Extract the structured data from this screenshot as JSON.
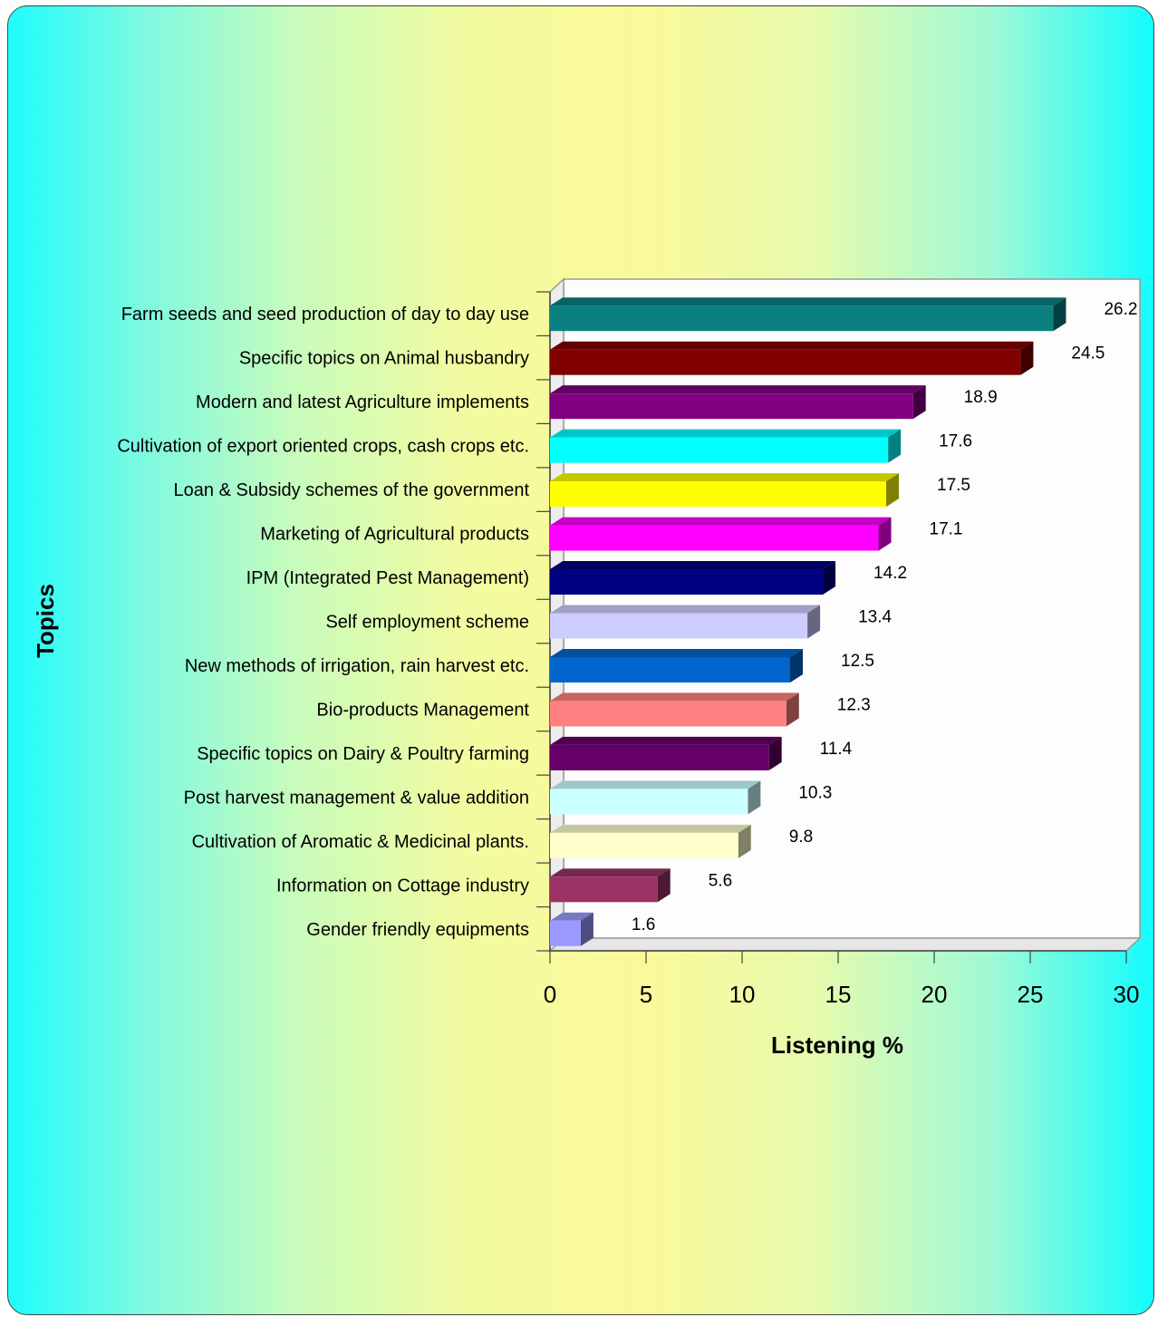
{
  "chart_data": {
    "type": "bar",
    "orientation": "horizontal",
    "xlabel": "Listening %",
    "ylabel": "Topics",
    "xlim": [
      0,
      30
    ],
    "xticks": [
      0,
      5,
      10,
      15,
      20,
      25,
      30
    ],
    "bars": [
      {
        "label": "Farm seeds and seed production of day to day use",
        "value": 26.2,
        "value_text": "26.2",
        "color": "#0a8080"
      },
      {
        "label": "Specific topics on Animal husbandry",
        "value": 24.5,
        "value_text": "24.5",
        "color": "#800000"
      },
      {
        "label": "Modern and latest Agriculture implements",
        "value": 18.9,
        "value_text": "18.9",
        "color": "#800080"
      },
      {
        "label": "Cultivation of export oriented crops, cash crops etc.",
        "value": 17.6,
        "value_text": "17.6",
        "color": "#00ffff"
      },
      {
        "label": "Loan & Subsidy schemes of the government",
        "value": 17.5,
        "value_text": "17.5",
        "color": "#ffff00"
      },
      {
        "label": "Marketing of Agricultural products",
        "value": 17.1,
        "value_text": "17.1",
        "color": "#ff00ff"
      },
      {
        "label": "IPM (Integrated Pest Management)",
        "value": 14.2,
        "value_text": "14.2",
        "color": "#000080"
      },
      {
        "label": "Self employment scheme",
        "value": 13.4,
        "value_text": "13.4",
        "color": "#ccccff"
      },
      {
        "label": "New methods of irrigation, rain harvest etc.",
        "value": 12.5,
        "value_text": "12.5",
        "color": "#0066cc"
      },
      {
        "label": "Bio-products Management",
        "value": 12.3,
        "value_text": "12.3",
        "color": "#ff8080"
      },
      {
        "label": "Specific topics on Dairy & Poultry farming",
        "value": 11.4,
        "value_text": "11.4",
        "color": "#660066"
      },
      {
        "label": "Post harvest management & value addition",
        "value": 10.3,
        "value_text": "10.3",
        "color": "#ccffff"
      },
      {
        "label": "Cultivation of Aromatic & Medicinal plants.",
        "value": 9.8,
        "value_text": "9.8",
        "color": "#ffffcc"
      },
      {
        "label": "Information on Cottage industry",
        "value": 5.6,
        "value_text": "5.6",
        "color": "#993366"
      },
      {
        "label": "Gender friendly equipments",
        "value": 1.6,
        "value_text": "1.6",
        "color": "#9999ff"
      }
    ]
  }
}
